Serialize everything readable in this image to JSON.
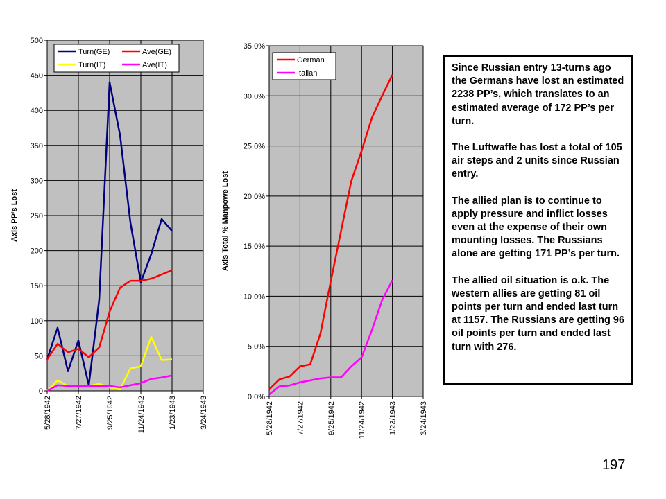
{
  "chart_data": [
    {
      "type": "line",
      "y_label": "Axis PP’s Lost",
      "x": [
        "5/28/1942",
        "6/17/1942",
        "7/7/1942",
        "7/27/1942",
        "8/16/1942",
        "9/5/1942",
        "9/25/1942",
        "10/15/1942",
        "11/4/1942",
        "11/24/1942",
        "12/14/1942",
        "1/3/1943",
        "1/23/1943"
      ],
      "xlim": [
        "5/28/1942",
        "3/24/1943"
      ],
      "xticks": [
        "5/28/1942",
        "7/27/1942",
        "9/25/1942",
        "11/24/1942",
        "1/23/1943",
        "3/24/1943"
      ],
      "ylim": [
        0,
        500
      ],
      "yticks": [
        0,
        50,
        100,
        150,
        200,
        250,
        300,
        350,
        400,
        450,
        500
      ],
      "grid": true,
      "series": [
        {
          "name": "Turn(GE)",
          "color": "#000080",
          "values": [
            45,
            90,
            28,
            72,
            8,
            130,
            440,
            365,
            240,
            155,
            195,
            245,
            228
          ]
        },
        {
          "name": "Ave(GE)",
          "color": "#ff0000",
          "values": [
            45,
            67,
            55,
            60,
            48,
            62,
            113,
            147,
            157,
            157,
            160,
            166,
            172
          ]
        },
        {
          "name": "Turn(IT)",
          "color": "#ffff00",
          "values": [
            0,
            15,
            7,
            7,
            7,
            10,
            5,
            2,
            32,
            35,
            77,
            44,
            45
          ]
        },
        {
          "name": "Ave(IT)",
          "color": "#ff00ff",
          "values": [
            0,
            8,
            7,
            7,
            7,
            7,
            7,
            5,
            8,
            11,
            17,
            19,
            22
          ]
        }
      ]
    },
    {
      "type": "line",
      "y_label": "Axis Total % Manpowe Lost",
      "x": [
        "5/28/1942",
        "6/17/1942",
        "7/7/1942",
        "7/27/1942",
        "8/16/1942",
        "9/5/1942",
        "9/25/1942",
        "10/15/1942",
        "11/4/1942",
        "11/24/1942",
        "12/14/1942",
        "1/3/1943",
        "1/23/1943"
      ],
      "xlim": [
        "5/28/1942",
        "3/24/1943"
      ],
      "xticks": [
        "5/28/1942",
        "7/27/1942",
        "9/25/1942",
        "11/24/1942",
        "1/23/1943",
        "3/24/1943"
      ],
      "ylim": [
        0,
        35
      ],
      "yticks": [
        {
          "value": 0,
          "label": "0.0%"
        },
        {
          "value": 5,
          "label": "5.0%"
        },
        {
          "value": 10,
          "label": "10.0%"
        },
        {
          "value": 15,
          "label": "15.0%"
        },
        {
          "value": 20,
          "label": "20.0%"
        },
        {
          "value": 25,
          "label": "25.0%"
        },
        {
          "value": 30,
          "label": "30.0%"
        },
        {
          "value": 35,
          "label": "35.0%"
        }
      ],
      "grid": true,
      "series": [
        {
          "name": "German",
          "color": "#ff0000",
          "values": [
            0.7,
            1.7,
            2.0,
            3.0,
            3.2,
            6.3,
            11.5,
            16.5,
            21.5,
            24.5,
            27.8,
            30.0,
            32.1
          ]
        },
        {
          "name": "Italian",
          "color": "#ff00ff",
          "values": [
            0.2,
            1.0,
            1.1,
            1.4,
            1.6,
            1.8,
            1.9,
            1.9,
            3.0,
            3.9,
            6.6,
            9.6,
            11.6
          ]
        }
      ]
    }
  ],
  "text_box": [
    "Since Russian entry 13-turns ago the Germans have lost an estimated 2238 PP’s, which translates to an estimated average of 172 PP’s per turn.",
    "The Luftwaffe has lost a total of 105 air steps and 2 units since Russian entry.",
    "The allied plan is to continue to apply pressure and inflict losses even at the expense of their own mounting losses. The Russians alone are getting 171 PP’s per turn.",
    "The allied oil situation is o.k. The western allies are getting 81 oil points per turn and ended last turn at 1157.  The Russians are getting 96 oil points per turn and ended last turn with 276."
  ],
  "page_number": "197"
}
